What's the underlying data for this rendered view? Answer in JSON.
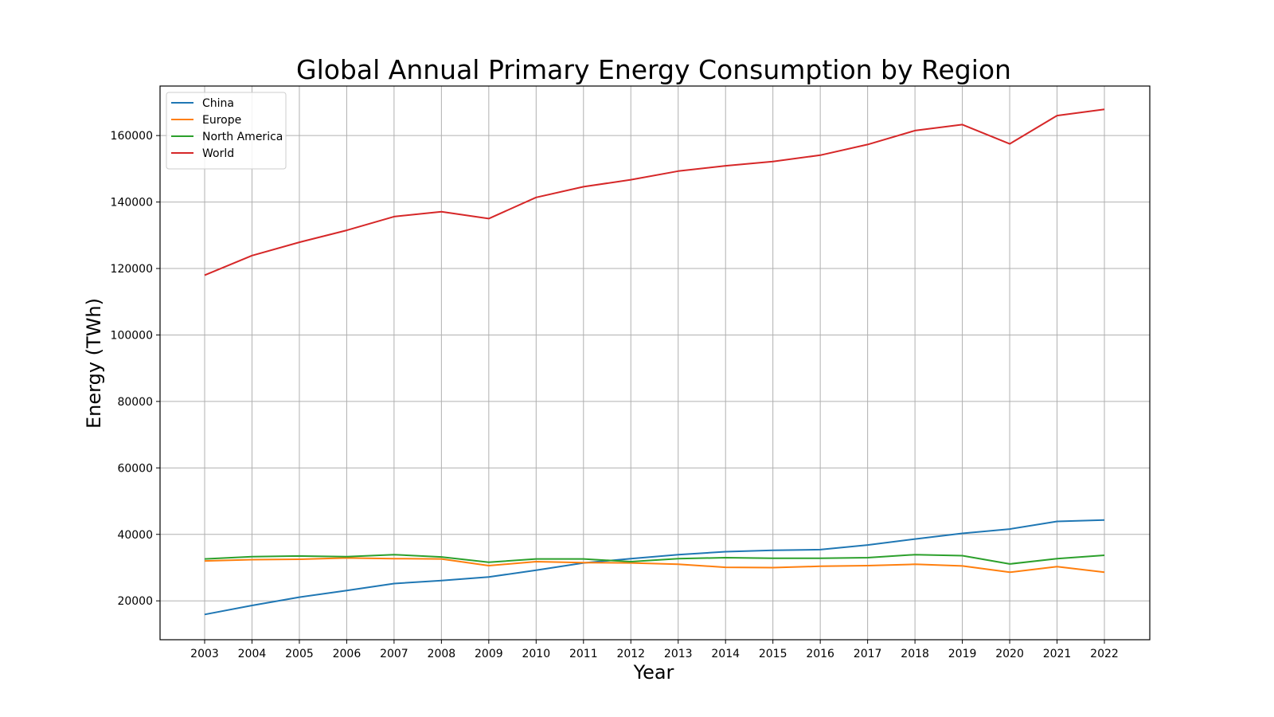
{
  "chart_data": {
    "type": "line",
    "title": "Global Annual Primary Energy Consumption by Region",
    "xlabel": "Year",
    "ylabel": "Energy (TWh)",
    "x": [
      2003,
      2004,
      2005,
      2006,
      2007,
      2008,
      2009,
      2010,
      2011,
      2012,
      2013,
      2014,
      2015,
      2016,
      2017,
      2018,
      2019,
      2020,
      2021,
      2022
    ],
    "x_tick_labels": [
      "2003",
      "2004",
      "2005",
      "2006",
      "2007",
      "2008",
      "2009",
      "2010",
      "2011",
      "2012",
      "2013",
      "2014",
      "2015",
      "2016",
      "2017",
      "2018",
      "2019",
      "2020",
      "2021",
      "2022"
    ],
    "ylim": [
      8300,
      174900
    ],
    "y_ticks": [
      20000,
      40000,
      60000,
      80000,
      100000,
      120000,
      140000,
      160000
    ],
    "y_tick_labels": [
      "20000",
      "40000",
      "60000",
      "80000",
      "100000",
      "120000",
      "140000",
      "160000"
    ],
    "grid": true,
    "legend_position": "top-left",
    "series": [
      {
        "name": "China",
        "color": "#1f77b4",
        "values": [
          15900,
          18600,
          21100,
          23100,
          25200,
          26100,
          27200,
          29200,
          31400,
          32700,
          33900,
          34800,
          35200,
          35400,
          36800,
          38600,
          40300,
          41600,
          43900,
          44300
        ]
      },
      {
        "name": "Europe",
        "color": "#ff7f0e",
        "values": [
          32000,
          32400,
          32500,
          32900,
          32700,
          32600,
          30600,
          31800,
          31500,
          31400,
          31000,
          30100,
          30000,
          30400,
          30600,
          31000,
          30500,
          28600,
          30300,
          28600
        ]
      },
      {
        "name": "North America",
        "color": "#2ca02c",
        "values": [
          32600,
          33300,
          33500,
          33300,
          33900,
          33200,
          31600,
          32600,
          32600,
          31800,
          32700,
          33000,
          32800,
          32800,
          33000,
          33900,
          33600,
          31100,
          32700,
          33700
        ]
      },
      {
        "name": "World",
        "color": "#d62728",
        "values": [
          118000,
          123900,
          127900,
          131500,
          135600,
          137100,
          135000,
          141400,
          144600,
          146700,
          149300,
          150900,
          152200,
          154100,
          157300,
          161500,
          163300,
          157500,
          166000,
          167900
        ]
      }
    ]
  }
}
